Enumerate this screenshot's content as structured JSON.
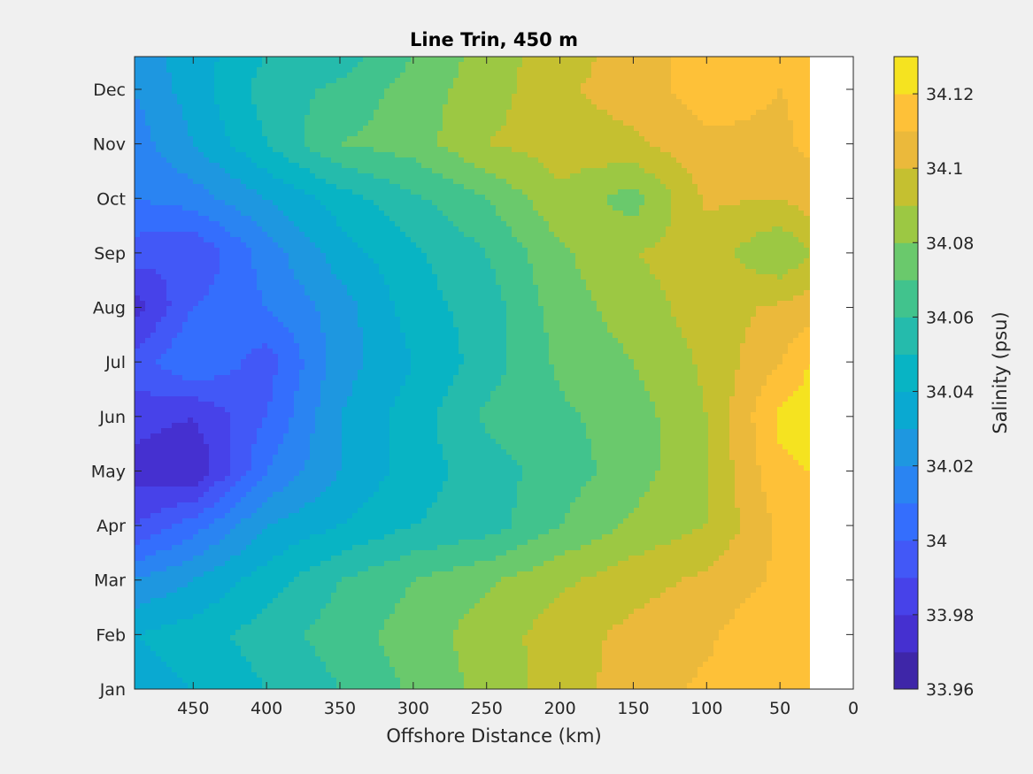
{
  "chart_data": {
    "type": "heatmap",
    "subtype": "filled-contour",
    "title": "Line Trin, 450 m",
    "xlabel": "Offshore Distance (km)",
    "xlim": [
      490,
      0
    ],
    "x_reversed": true,
    "x_ticks": [
      450,
      400,
      350,
      300,
      250,
      200,
      150,
      100,
      50,
      0
    ],
    "x_tick_labels": [
      "450",
      "400",
      "350",
      "300",
      "250",
      "200",
      "150",
      "100",
      "50",
      "0"
    ],
    "ylabel": "",
    "y_tick_labels": [
      "Jan",
      "Feb",
      "Mar",
      "Apr",
      "May",
      "Jun",
      "Jul",
      "Aug",
      "Sep",
      "Oct",
      "Nov",
      "Dec"
    ],
    "data_extent_km": [
      490,
      30
    ],
    "colorbar": {
      "label": "Salinity (psu)",
      "range": [
        33.96,
        34.13
      ],
      "levels": [
        33.96,
        33.97,
        33.98,
        33.99,
        34.0,
        34.01,
        34.02,
        34.03,
        34.04,
        34.05,
        34.06,
        34.07,
        34.08,
        34.09,
        34.1,
        34.11,
        34.12,
        34.13
      ],
      "tick_values": [
        33.96,
        33.98,
        34.0,
        34.02,
        34.04,
        34.06,
        34.08,
        34.1,
        34.12
      ],
      "tick_labels": [
        "33.96",
        "33.98",
        "34",
        "34.02",
        "34.04",
        "34.06",
        "34.08",
        "34.1",
        "34.12"
      ],
      "colors": [
        "#3e26a8",
        "#4530d0",
        "#4742e9",
        "#4258f7",
        "#346efd",
        "#2a84f2",
        "#1e97e0",
        "#0aa9d1",
        "#08b4c4",
        "#25bbac",
        "#41c38d",
        "#6ac96c",
        "#9cc843",
        "#c5c030",
        "#ebb93b",
        "#fec138",
        "#f5e320"
      ]
    },
    "x": [
      490,
      450,
      400,
      350,
      300,
      250,
      200,
      150,
      100,
      50,
      30
    ],
    "y": [
      1,
      2,
      3,
      4,
      5,
      6,
      7,
      8,
      9,
      10,
      11,
      12,
      12.6
    ],
    "z": [
      [
        34.035,
        34.04,
        34.05,
        34.06,
        34.072,
        34.083,
        34.095,
        34.105,
        34.112,
        34.118,
        34.112
      ],
      [
        34.04,
        34.045,
        34.055,
        34.065,
        34.075,
        34.085,
        34.095,
        34.103,
        34.108,
        34.12,
        34.118
      ],
      [
        34.02,
        34.03,
        34.045,
        34.06,
        34.07,
        34.078,
        34.088,
        34.096,
        34.102,
        34.112,
        34.116
      ],
      [
        33.99,
        34.005,
        34.03,
        34.04,
        34.05,
        34.055,
        34.07,
        34.082,
        34.09,
        34.112,
        34.114
      ],
      [
        33.975,
        33.97,
        34.01,
        34.03,
        34.045,
        34.055,
        34.065,
        34.075,
        34.09,
        34.118,
        34.12
      ],
      [
        33.985,
        33.98,
        34.0,
        34.03,
        34.045,
        34.062,
        34.068,
        34.075,
        34.09,
        34.122,
        34.125
      ],
      [
        33.995,
        34.01,
        33.995,
        34.025,
        34.04,
        34.055,
        34.072,
        34.08,
        34.092,
        34.11,
        34.12
      ],
      [
        33.975,
        34.0,
        34.01,
        34.025,
        34.045,
        34.055,
        34.075,
        34.085,
        34.095,
        34.102,
        34.105
      ],
      [
        33.995,
        33.99,
        34.015,
        34.035,
        34.048,
        34.06,
        34.078,
        34.09,
        34.095,
        34.08,
        34.09
      ],
      [
        34.01,
        34.015,
        34.03,
        34.045,
        34.058,
        34.07,
        34.088,
        34.075,
        34.102,
        34.1,
        34.105
      ],
      [
        34.015,
        34.03,
        34.05,
        34.07,
        34.075,
        34.09,
        34.095,
        34.098,
        34.108,
        34.108,
        34.112
      ],
      [
        34.02,
        34.035,
        34.055,
        34.062,
        34.075,
        34.085,
        34.098,
        34.105,
        34.115,
        34.11,
        34.112
      ],
      [
        34.025,
        34.035,
        34.05,
        34.055,
        34.07,
        34.085,
        34.095,
        34.105,
        34.115,
        34.11,
        34.11
      ]
    ]
  }
}
